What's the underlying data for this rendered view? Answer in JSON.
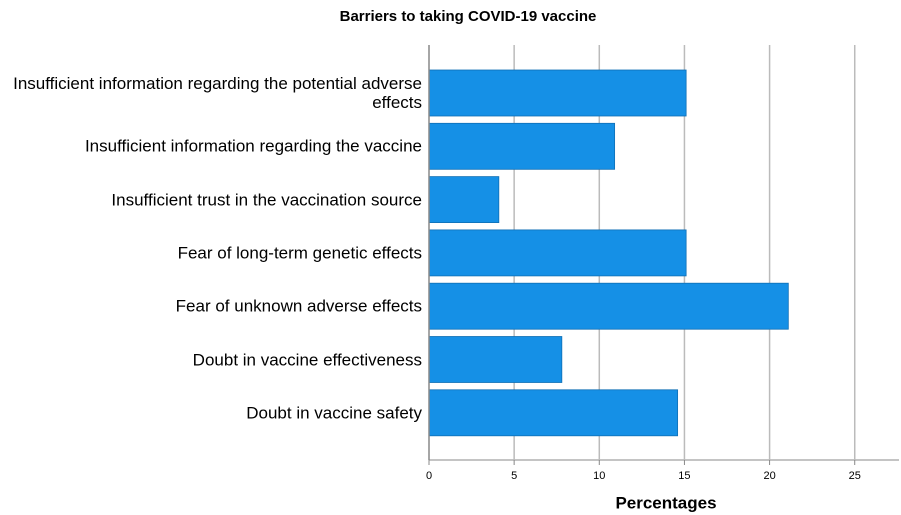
{
  "chart_data": {
    "type": "bar",
    "orientation": "horizontal",
    "title": "Barriers to taking COVID-19 vaccine",
    "x_label": "Percentages",
    "categories": [
      "Insufficient information regarding the potential adverse effects",
      "Insufficient information regarding the vaccine",
      "Insufficient trust in the vaccination source",
      "Fear of long-term genetic effects",
      "Fear of unknown adverse effects",
      "Doubt in vaccine effectiveness",
      "Doubt in vaccine safety"
    ],
    "values": [
      15.1,
      10.9,
      4.1,
      15.1,
      21.1,
      7.8,
      14.6
    ],
    "color": "#1590e6",
    "xlim": [
      0,
      27.6
    ],
    "xticks": [
      0,
      5,
      10,
      15,
      20,
      25
    ],
    "grid": true
  }
}
